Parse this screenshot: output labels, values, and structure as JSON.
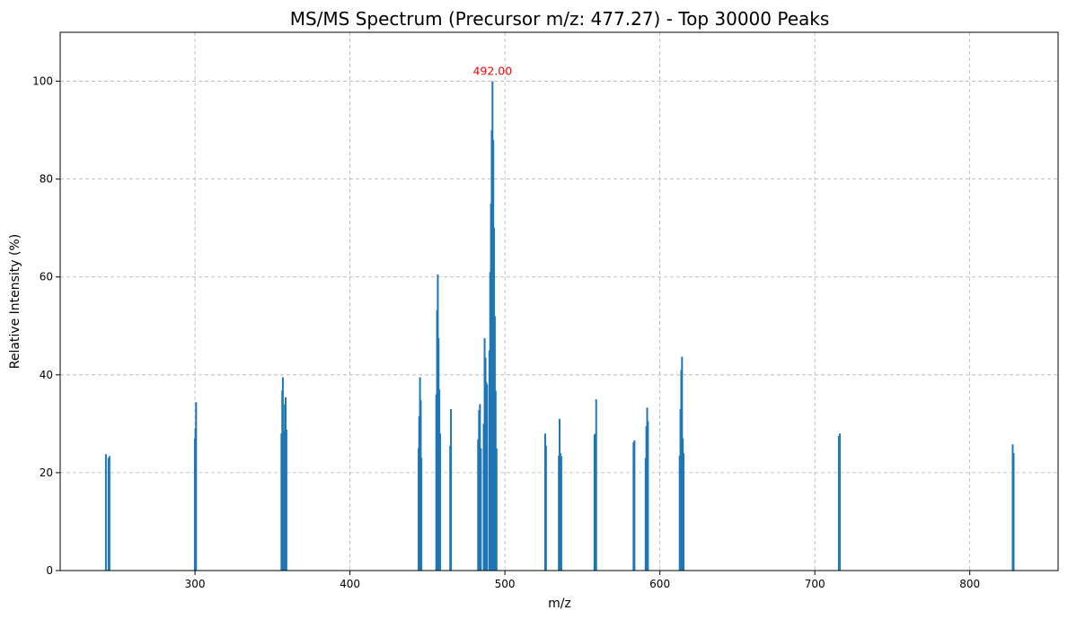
{
  "chart_data": {
    "type": "bar",
    "title": "MS/MS Spectrum (Precursor m/z: 477.27) - Top 30000 Peaks",
    "xlabel": "m/z",
    "ylabel": "Relative Intensity (%)",
    "xlim": [
      213,
      857
    ],
    "ylim": [
      0,
      110
    ],
    "xticks": [
      300,
      400,
      500,
      600,
      700,
      800
    ],
    "yticks": [
      0,
      20,
      40,
      60,
      80,
      100
    ],
    "grid": true,
    "bar_color": "#1f77b4",
    "annotation": {
      "text": "492.00",
      "color": "#ff0000",
      "x": 492.0,
      "y": 102
    },
    "peaks": [
      {
        "mz": 242.5,
        "intensity": 23.8
      },
      {
        "mz": 244.2,
        "intensity": 23.0
      },
      {
        "mz": 244.8,
        "intensity": 23.4
      },
      {
        "mz": 299.9,
        "intensity": 27.0
      },
      {
        "mz": 300.3,
        "intensity": 29.0
      },
      {
        "mz": 300.7,
        "intensity": 34.4
      },
      {
        "mz": 355.8,
        "intensity": 28.0
      },
      {
        "mz": 356.3,
        "intensity": 36.8
      },
      {
        "mz": 356.7,
        "intensity": 39.5
      },
      {
        "mz": 357.3,
        "intensity": 28.5
      },
      {
        "mz": 358.0,
        "intensity": 34.0
      },
      {
        "mz": 358.5,
        "intensity": 35.4
      },
      {
        "mz": 359.0,
        "intensity": 28.8
      },
      {
        "mz": 444.3,
        "intensity": 25.0
      },
      {
        "mz": 444.7,
        "intensity": 31.5
      },
      {
        "mz": 445.2,
        "intensity": 39.5
      },
      {
        "mz": 445.7,
        "intensity": 34.8
      },
      {
        "mz": 446.1,
        "intensity": 23.0
      },
      {
        "mz": 455.7,
        "intensity": 36.0
      },
      {
        "mz": 456.2,
        "intensity": 53.2
      },
      {
        "mz": 456.7,
        "intensity": 60.5
      },
      {
        "mz": 457.2,
        "intensity": 47.5
      },
      {
        "mz": 457.7,
        "intensity": 37.0
      },
      {
        "mz": 458.2,
        "intensity": 28.0
      },
      {
        "mz": 464.7,
        "intensity": 25.5
      },
      {
        "mz": 465.2,
        "intensity": 33.0
      },
      {
        "mz": 482.7,
        "intensity": 26.8
      },
      {
        "mz": 483.3,
        "intensity": 32.8
      },
      {
        "mz": 483.9,
        "intensity": 34.0
      },
      {
        "mz": 484.5,
        "intensity": 25.0
      },
      {
        "mz": 486.3,
        "intensity": 30.0
      },
      {
        "mz": 486.9,
        "intensity": 47.5
      },
      {
        "mz": 487.5,
        "intensity": 43.5
      },
      {
        "mz": 488.0,
        "intensity": 38.5
      },
      {
        "mz": 488.5,
        "intensity": 38.0
      },
      {
        "mz": 490.0,
        "intensity": 45.0
      },
      {
        "mz": 490.5,
        "intensity": 61.0
      },
      {
        "mz": 491.0,
        "intensity": 75.0
      },
      {
        "mz": 491.5,
        "intensity": 90.0
      },
      {
        "mz": 492.0,
        "intensity": 100.0
      },
      {
        "mz": 492.5,
        "intensity": 88.0
      },
      {
        "mz": 493.0,
        "intensity": 70.0
      },
      {
        "mz": 493.5,
        "intensity": 52.0
      },
      {
        "mz": 494.0,
        "intensity": 36.8
      },
      {
        "mz": 494.6,
        "intensity": 25.0
      },
      {
        "mz": 526.0,
        "intensity": 28.0
      },
      {
        "mz": 526.5,
        "intensity": 25.5
      },
      {
        "mz": 534.8,
        "intensity": 23.5
      },
      {
        "mz": 535.3,
        "intensity": 31.0
      },
      {
        "mz": 535.8,
        "intensity": 24.0
      },
      {
        "mz": 536.4,
        "intensity": 23.4
      },
      {
        "mz": 557.8,
        "intensity": 27.8
      },
      {
        "mz": 558.4,
        "intensity": 28.0
      },
      {
        "mz": 558.9,
        "intensity": 35.0
      },
      {
        "mz": 583.0,
        "intensity": 26.2
      },
      {
        "mz": 583.6,
        "intensity": 26.6
      },
      {
        "mz": 590.8,
        "intensity": 23.0
      },
      {
        "mz": 591.3,
        "intensity": 29.5
      },
      {
        "mz": 591.8,
        "intensity": 33.3
      },
      {
        "mz": 592.3,
        "intensity": 30.5
      },
      {
        "mz": 612.8,
        "intensity": 23.5
      },
      {
        "mz": 613.3,
        "intensity": 33.0
      },
      {
        "mz": 613.8,
        "intensity": 41.0
      },
      {
        "mz": 614.3,
        "intensity": 43.7
      },
      {
        "mz": 614.8,
        "intensity": 27.0
      },
      {
        "mz": 615.3,
        "intensity": 24.0
      },
      {
        "mz": 715.5,
        "intensity": 27.5
      },
      {
        "mz": 716.1,
        "intensity": 28.0
      },
      {
        "mz": 827.7,
        "intensity": 25.8
      },
      {
        "mz": 828.3,
        "intensity": 24.0
      }
    ]
  }
}
